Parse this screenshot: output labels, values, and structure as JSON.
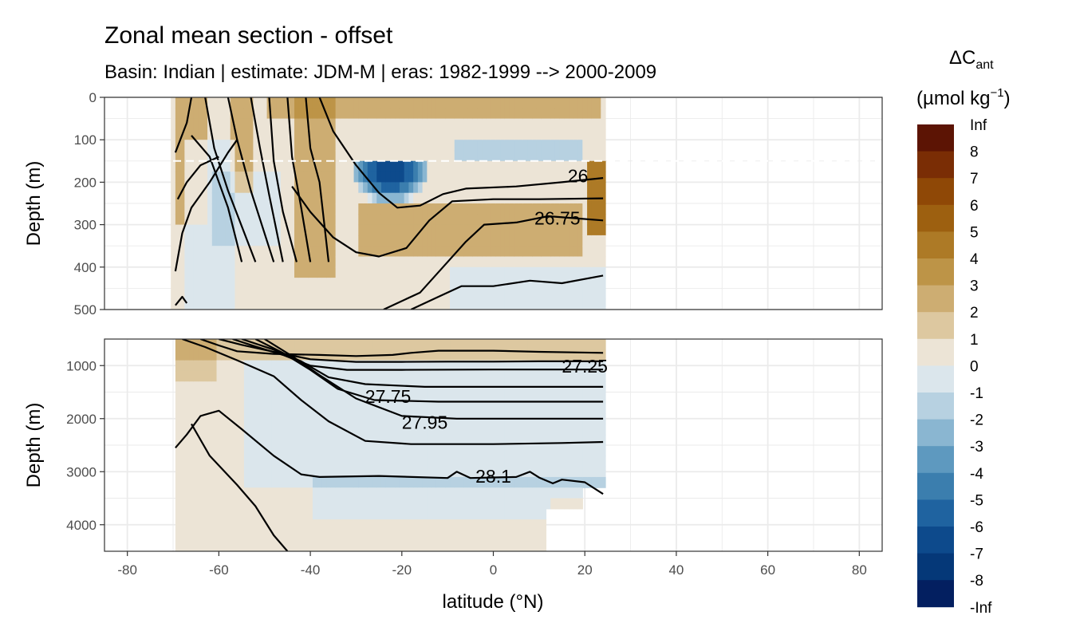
{
  "chart_data": {
    "type": "heatmap",
    "title": "Zonal mean section - offset",
    "subtitle": "Basin: Indian | estimate: JDM-M | eras: 1982-1999 --> 2000-2009",
    "xlabel": "latitude (°N)",
    "x_ticks": [
      "-80",
      "-60",
      "-40",
      "-20",
      "0",
      "20",
      "40",
      "60",
      "80"
    ],
    "xlim": [
      -85,
      85
    ],
    "panels": [
      {
        "ylabel": "Depth (m)",
        "ylim": [
          0,
          500
        ],
        "y_ticks": [
          "0",
          "100",
          "200",
          "300",
          "400",
          "500"
        ],
        "reference_line_depth": 150,
        "isopycnal_labels": [
          {
            "text": "26",
            "lat": 18.5,
            "depth": 185
          },
          {
            "text": "26.75",
            "lat": 14,
            "depth": 285
          }
        ]
      },
      {
        "ylabel": "Depth (m)",
        "ylim": [
          500,
          4500
        ],
        "y_ticks": [
          "1000",
          "2000",
          "3000",
          "4000"
        ],
        "isopycnal_labels": [
          {
            "text": "27.25",
            "lat": 20,
            "depth": 1010
          },
          {
            "text": "27.75",
            "lat": -23,
            "depth": 1580
          },
          {
            "text": "27.95",
            "lat": -15,
            "depth": 2070
          },
          {
            "text": "28.1",
            "lat": 0,
            "depth": 3090
          }
        ]
      }
    ],
    "colorbar": {
      "title_main": "ΔC",
      "title_sub": "ant",
      "units_main": "(µmol kg",
      "units_sup": "−1",
      "units_end": ")",
      "labels": [
        "Inf",
        "8",
        "7",
        "6",
        "5",
        "4",
        "3",
        "2",
        "1",
        "0",
        "-1",
        "-2",
        "-3",
        "-4",
        "-5",
        "-6",
        "-7",
        "-8",
        "-Inf"
      ],
      "colors": [
        "#5c1404",
        "#7a2d05",
        "#8f4806",
        "#9d6010",
        "#ad7a26",
        "#bd9447",
        "#cdad72",
        "#ddc8a0",
        "#ece4d6",
        "#dbe6ec",
        "#b7d1e1",
        "#8ab6d1",
        "#5e99bf",
        "#3b7eae",
        "#1f63a0",
        "#0d4a8c",
        "#053878",
        "#031f60"
      ]
    }
  }
}
